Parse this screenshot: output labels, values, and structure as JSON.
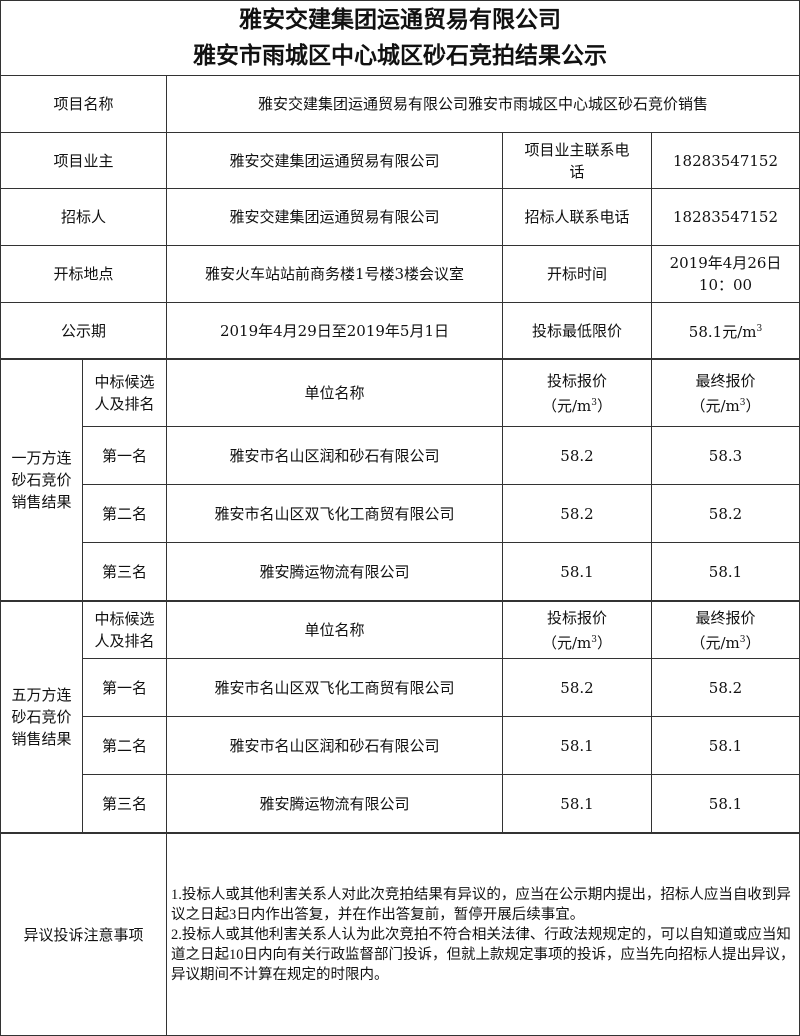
{
  "title": {
    "line1": "雅安交建集团运通贸易有限公司",
    "line2": "雅安市雨城区中心城区砂石竞拍结果公示"
  },
  "info": {
    "project_name_label": "项目名称",
    "project_name": "雅安交建集团运通贸易有限公司雅安市雨城区中心城区砂石竞价销售",
    "owner_label": "项目业主",
    "owner": "雅安交建集团运通贸易有限公司",
    "owner_phone_label": "项目业主联系电话",
    "owner_phone": "18283547152",
    "tenderer_label": "招标人",
    "tenderer": "雅安交建集团运通贸易有限公司",
    "tenderer_phone_label": "招标人联系电话",
    "tenderer_phone": "18283547152",
    "location_label": "开标地点",
    "location": "雅安火车站站前商务楼1号楼3楼会议室",
    "open_time_label": "开标时间",
    "open_time_date": "2019年4月26日",
    "open_time_clock": "10：00",
    "period_label": "公示期",
    "period": "2019年4月29日至2019年5月1日",
    "min_price_label": "投标最低限价",
    "min_price": "58.1元/m",
    "min_price_sup": "3"
  },
  "headers": {
    "rank": "中标候选人及排名",
    "company": "单位名称",
    "bid": "投标报价",
    "final": "最终报价",
    "unit": "（元/m",
    "unit_sup": "3",
    "unit_close": "）"
  },
  "sections": [
    {
      "label": "一万方连砂石竞价销售结果",
      "rows": [
        {
          "rank": "第一名",
          "company": "雅安市名山区润和砂石有限公司",
          "bid": "58.2",
          "final": "58.3"
        },
        {
          "rank": "第二名",
          "company": "雅安市名山区双飞化工商贸有限公司",
          "bid": "58.2",
          "final": "58.2"
        },
        {
          "rank": "第三名",
          "company": "雅安腾运物流有限公司",
          "bid": "58.1",
          "final": "58.1"
        }
      ]
    },
    {
      "label": "五万方连砂石竞价销售结果",
      "rows": [
        {
          "rank": "第一名",
          "company": "雅安市名山区双飞化工商贸有限公司",
          "bid": "58.2",
          "final": "58.2"
        },
        {
          "rank": "第二名",
          "company": "雅安市名山区润和砂石有限公司",
          "bid": "58.1",
          "final": "58.1"
        },
        {
          "rank": "第三名",
          "company": "雅安腾运物流有限公司",
          "bid": "58.1",
          "final": "58.1"
        }
      ]
    }
  ],
  "notes": {
    "label": "异议投诉注意事项",
    "item1": "1.投标人或其他利害关系人对此次竞拍结果有异议的，应当在公示期内提出，招标人应当自收到异议之日起3日内作出答复，并在作出答复前，暂停开展后续事宜。",
    "item2": "2.投标人或其他利害关系人认为此次竞拍不符合相关法律、行政法规规定的，可以自知道或应当知道之日起10日内向有关行政监督部门投诉，但就上款规定事项的投诉，应当先向招标人提出异议，异议期间不计算在规定的时限内。"
  }
}
